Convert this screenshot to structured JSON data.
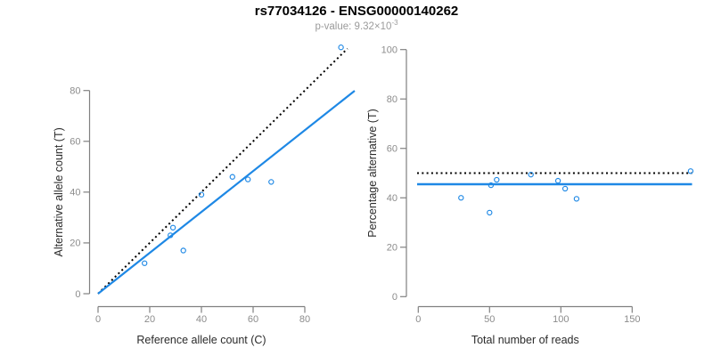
{
  "header": {
    "title": "rs77034126 - ENSG00000140262",
    "p_value_base": "p-value: 9.32×10",
    "p_value_exp": "-3"
  },
  "colors": {
    "point": "#1E88E5",
    "fit_line": "#1E88E5",
    "reference_line": "#000000",
    "axis": "#808080",
    "tick_label": "#8c8c8c",
    "axis_title": "#2b2b2b",
    "title": "#000000",
    "subtitle": "#9b9b9b"
  },
  "chart_data": [
    {
      "type": "scatter",
      "panel": "allele-counts",
      "xlabel": "Reference allele count (C)",
      "ylabel": "Alternative allele count (T)",
      "xticks": [
        0,
        20,
        40,
        60,
        80
      ],
      "yticks": [
        0,
        20,
        40,
        60,
        80
      ],
      "xlim": [
        0,
        97
      ],
      "ylim": [
        0,
        100
      ],
      "grid": false,
      "points": [
        [
          18,
          12
        ],
        [
          28,
          23
        ],
        [
          29,
          26
        ],
        [
          33,
          17
        ],
        [
          40,
          39
        ],
        [
          52,
          46
        ],
        [
          58,
          45
        ],
        [
          67,
          44
        ],
        [
          94,
          97
        ]
      ],
      "lines": [
        {
          "id": "identity-line",
          "meaning": "y = x (50% expectation)",
          "style": "dotted",
          "color": "#000000",
          "x1": 0,
          "y1": 0,
          "x2": 96.5,
          "y2": 96.5,
          "width": 2
        },
        {
          "id": "fit-line",
          "meaning": "fitted ratio slope 0.80",
          "style": "solid",
          "color": "#1E88E5",
          "x1": 0,
          "y1": 0,
          "x2": 99.3,
          "y2": 79.9,
          "width": 2.2
        }
      ]
    },
    {
      "type": "scatter",
      "panel": "percentage-vs-reads",
      "xlabel": "Total number of reads",
      "ylabel": "Percentage alternative (T)",
      "xticks": [
        0,
        50,
        100,
        150
      ],
      "yticks": [
        0,
        20,
        40,
        60,
        80,
        100
      ],
      "xlim": [
        0,
        192
      ],
      "ylim": [
        0,
        100
      ],
      "grid": false,
      "points": [
        [
          30,
          40.0
        ],
        [
          51,
          45.1
        ],
        [
          55,
          47.3
        ],
        [
          50,
          34.0
        ],
        [
          79,
          49.4
        ],
        [
          98,
          46.9
        ],
        [
          103,
          43.7
        ],
        [
          111,
          39.6
        ],
        [
          191,
          50.8
        ]
      ],
      "lines": [
        {
          "id": "expected-50pct-line",
          "meaning": "expected 50%",
          "style": "dotted",
          "color": "#000000",
          "x1": -0.8,
          "y1": 50,
          "x2": 192,
          "y2": 50,
          "width": 2
        },
        {
          "id": "fit-line",
          "meaning": "observed mean 45.5%",
          "style": "solid",
          "color": "#1E88E5",
          "x1": -0.8,
          "y1": 45.5,
          "x2": 192,
          "y2": 45.5,
          "width": 2.4
        }
      ]
    }
  ]
}
